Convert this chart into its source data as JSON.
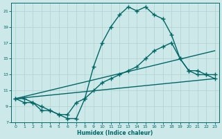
{
  "xlabel": "Humidex (Indice chaleur)",
  "bg_color": "#cce8e8",
  "grid_color": "#b0d0d0",
  "line_color": "#006666",
  "xlim": [
    -0.5,
    23.5
  ],
  "ylim": [
    7,
    22
  ],
  "xticks": [
    0,
    1,
    2,
    3,
    4,
    5,
    6,
    7,
    8,
    9,
    10,
    11,
    12,
    13,
    14,
    15,
    16,
    17,
    18,
    19,
    20,
    21,
    22,
    23
  ],
  "yticks": [
    7,
    9,
    11,
    13,
    15,
    17,
    19,
    21
  ],
  "line1_x": [
    0,
    1,
    2,
    3,
    4,
    5,
    6,
    7,
    8,
    9,
    10,
    11,
    12,
    13,
    14,
    15,
    16,
    17,
    18,
    19,
    20,
    21,
    22,
    23
  ],
  "line1_y": [
    10,
    10,
    9.5,
    9,
    8.5,
    8,
    7.5,
    7.5,
    10,
    14,
    17,
    19,
    20.5,
    21.5,
    21,
    21.5,
    20.5,
    20,
    18,
    15,
    13.5,
    13,
    13,
    12.5
  ],
  "line2_x": [
    0,
    1,
    2,
    3,
    4,
    5,
    6,
    7,
    8,
    9,
    10,
    11,
    12,
    13,
    14,
    15,
    16,
    17,
    18,
    19,
    20,
    21,
    22,
    23
  ],
  "line2_y": [
    10,
    9.5,
    9.5,
    8.5,
    8.5,
    8,
    8,
    9.5,
    10,
    11,
    12,
    12.5,
    13,
    13.5,
    14,
    15,
    16,
    16.5,
    17,
    15,
    13.5,
    13.5,
    13,
    13
  ],
  "line3_x": [
    0,
    23
  ],
  "line3_y": [
    10.0,
    16.0
  ],
  "line4_x": [
    0,
    23
  ],
  "line4_y": [
    10.0,
    12.5
  ],
  "marker": "+",
  "marker_size": 4,
  "linewidth": 1.0
}
